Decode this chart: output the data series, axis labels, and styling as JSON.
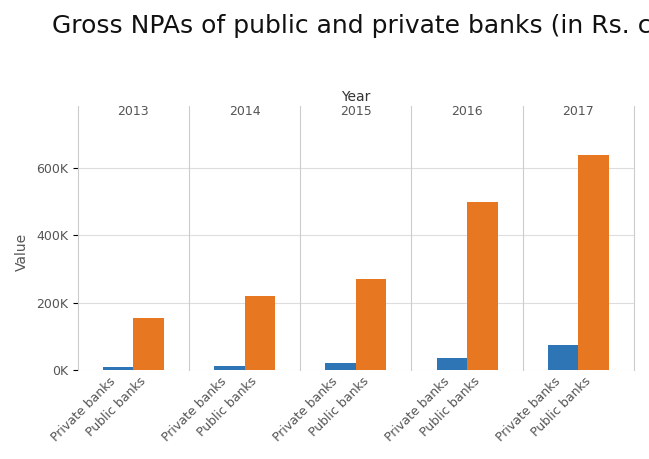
{
  "title": "Gross NPAs of public and private banks (in Rs. crore)",
  "xlabel": "Year",
  "ylabel": "Value",
  "years": [
    "2013",
    "2014",
    "2015",
    "2016",
    "2017"
  ],
  "private_banks": [
    8000,
    12000,
    20000,
    35000,
    75000
  ],
  "public_banks": [
    155000,
    220000,
    270000,
    500000,
    640000
  ],
  "private_color": "#2E75B6",
  "public_color": "#E87722",
  "ylim": [
    0,
    700000
  ],
  "yticks": [
    0,
    200000,
    400000,
    600000
  ],
  "ytick_labels": [
    "0K",
    "200K",
    "400K",
    "600K"
  ],
  "background_color": "#FFFFFF",
  "title_fontsize": 18,
  "axis_label_fontsize": 10,
  "tick_fontsize": 9
}
